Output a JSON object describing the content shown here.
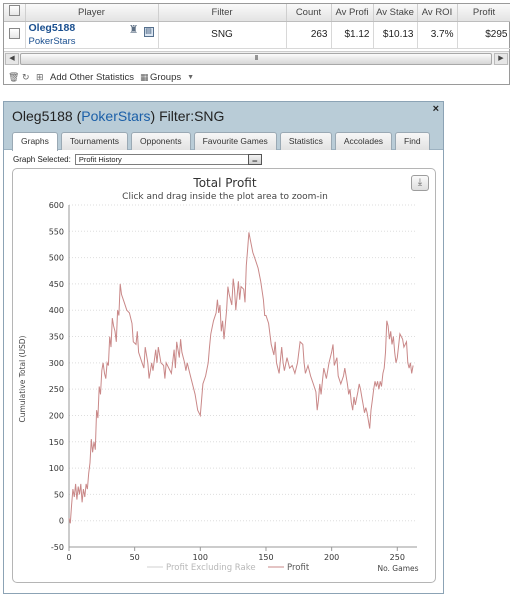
{
  "grid": {
    "headers": [
      "Player",
      "Filter",
      "Count",
      "Av Profi",
      "Av Stake",
      "Av ROI",
      "Profit"
    ],
    "row": {
      "player_name": "Oleg5188",
      "player_site": "PokerStars",
      "filter": "SNG",
      "count": "263",
      "av_profit": "$1.12",
      "av_stake": "$10.13",
      "av_roi": "3.7%",
      "profit": "$295"
    },
    "scroll_thumb_label": "III",
    "toolbar": {
      "add_other_label": "Add Other Statistics",
      "groups_label": "Groups"
    }
  },
  "dialog": {
    "title_player": "Oleg5188",
    "title_site": "PokerStars",
    "title_filter": "Filter:SNG",
    "close_label": "×",
    "tabs": [
      "Graphs",
      "Tournaments",
      "Opponents",
      "Favourite Games",
      "Statistics",
      "Accolades",
      "Find"
    ],
    "graph_selected_label": "Graph Selected:",
    "graph_selected_value": "Profit History"
  },
  "chart_data": {
    "type": "line",
    "title": "Total Profit",
    "subtitle": "Click and drag inside the plot area to zoom-in",
    "xlabel": "No. Games",
    "ylabel": "Cumulative Total (USD)",
    "xlim": [
      0,
      265
    ],
    "ylim": [
      -50,
      600
    ],
    "x_ticks": [
      0,
      50,
      100,
      150,
      200,
      250
    ],
    "y_ticks": [
      -50,
      0,
      50,
      100,
      150,
      200,
      250,
      300,
      350,
      400,
      450,
      500,
      550,
      600
    ],
    "legend": [
      "Profit Excluding Rake",
      "Profit"
    ],
    "legend_position": "bottom",
    "grid": true,
    "series": [
      {
        "name": "Profit",
        "color": "#c98888",
        "points": [
          [
            0,
            5
          ],
          [
            1,
            -5
          ],
          [
            2,
            30
          ],
          [
            3,
            60
          ],
          [
            4,
            45
          ],
          [
            5,
            70
          ],
          [
            6,
            40
          ],
          [
            7,
            65
          ],
          [
            8,
            50
          ],
          [
            9,
            70
          ],
          [
            10,
            35
          ],
          [
            11,
            60
          ],
          [
            12,
            45
          ],
          [
            13,
            70
          ],
          [
            14,
            60
          ],
          [
            15,
            90
          ],
          [
            16,
            110
          ],
          [
            17,
            155
          ],
          [
            18,
            130
          ],
          [
            19,
            150
          ],
          [
            20,
            135
          ],
          [
            21,
            210
          ],
          [
            22,
            195
          ],
          [
            23,
            255
          ],
          [
            24,
            240
          ],
          [
            25,
            285
          ],
          [
            26,
            300
          ],
          [
            27,
            280
          ],
          [
            28,
            270
          ],
          [
            29,
            300
          ],
          [
            30,
            295
          ],
          [
            31,
            350
          ],
          [
            32,
            330
          ],
          [
            33,
            385
          ],
          [
            34,
            370
          ],
          [
            35,
            360
          ],
          [
            36,
            340
          ],
          [
            37,
            400
          ],
          [
            38,
            390
          ],
          [
            39,
            450
          ],
          [
            40,
            430
          ],
          [
            42,
            415
          ],
          [
            44,
            400
          ],
          [
            46,
            395
          ],
          [
            48,
            375
          ],
          [
            49,
            340
          ],
          [
            51,
            335
          ],
          [
            52,
            360
          ],
          [
            53,
            320
          ],
          [
            55,
            305
          ],
          [
            57,
            290
          ],
          [
            58,
            330
          ],
          [
            60,
            300
          ],
          [
            61,
            270
          ],
          [
            63,
            300
          ],
          [
            64,
            285
          ],
          [
            66,
            325
          ],
          [
            67,
            300
          ],
          [
            68,
            330
          ],
          [
            70,
            300
          ],
          [
            72,
            295
          ],
          [
            73,
            270
          ],
          [
            74,
            300
          ],
          [
            76,
            290
          ],
          [
            78,
            280
          ],
          [
            80,
            325
          ],
          [
            81,
            290
          ],
          [
            82,
            340
          ],
          [
            84,
            310
          ],
          [
            85,
            345
          ],
          [
            86,
            320
          ],
          [
            88,
            300
          ],
          [
            89,
            285
          ],
          [
            90,
            300
          ],
          [
            92,
            280
          ],
          [
            93,
            270
          ],
          [
            95,
            250
          ],
          [
            96,
            240
          ],
          [
            97,
            225
          ],
          [
            98,
            210
          ],
          [
            100,
            200
          ],
          [
            101,
            230
          ],
          [
            102,
            260
          ],
          [
            104,
            275
          ],
          [
            106,
            300
          ],
          [
            107,
            330
          ],
          [
            108,
            355
          ],
          [
            110,
            380
          ],
          [
            112,
            395
          ],
          [
            113,
            420
          ],
          [
            114,
            395
          ],
          [
            115,
            410
          ],
          [
            116,
            360
          ],
          [
            117,
            380
          ],
          [
            118,
            345
          ],
          [
            120,
            400
          ],
          [
            121,
            445
          ],
          [
            122,
            430
          ],
          [
            124,
            410
          ],
          [
            125,
            460
          ],
          [
            126,
            440
          ],
          [
            127,
            400
          ],
          [
            129,
            455
          ],
          [
            130,
            420
          ],
          [
            131,
            445
          ],
          [
            133,
            440
          ],
          [
            134,
            415
          ],
          [
            135,
            485
          ],
          [
            136,
            515
          ],
          [
            137,
            548
          ],
          [
            138,
            535
          ],
          [
            140,
            510
          ],
          [
            142,
            495
          ],
          [
            144,
            480
          ],
          [
            146,
            455
          ],
          [
            148,
            420
          ],
          [
            149,
            390
          ],
          [
            150,
            390
          ],
          [
            152,
            375
          ],
          [
            154,
            335
          ],
          [
            156,
            315
          ],
          [
            157,
            340
          ],
          [
            158,
            300
          ],
          [
            160,
            280
          ],
          [
            162,
            330
          ],
          [
            163,
            300
          ],
          [
            164,
            285
          ],
          [
            166,
            310
          ],
          [
            168,
            290
          ],
          [
            170,
            295
          ],
          [
            172,
            280
          ],
          [
            174,
            300
          ],
          [
            176,
            340
          ],
          [
            178,
            335
          ],
          [
            179,
            300
          ],
          [
            180,
            280
          ],
          [
            182,
            295
          ],
          [
            184,
            275
          ],
          [
            186,
            260
          ],
          [
            188,
            245
          ],
          [
            189,
            210
          ],
          [
            190,
            230
          ],
          [
            191,
            260
          ],
          [
            192,
            240
          ],
          [
            193,
            265
          ],
          [
            194,
            290
          ],
          [
            196,
            270
          ],
          [
            198,
            300
          ],
          [
            200,
            320
          ],
          [
            201,
            335
          ],
          [
            202,
            295
          ],
          [
            204,
            310
          ],
          [
            205,
            275
          ],
          [
            207,
            260
          ],
          [
            209,
            275
          ],
          [
            210,
            290
          ],
          [
            212,
            260
          ],
          [
            213,
            240
          ],
          [
            214,
            250
          ],
          [
            215,
            225
          ],
          [
            216,
            210
          ],
          [
            217,
            235
          ],
          [
            218,
            220
          ],
          [
            220,
            245
          ],
          [
            221,
            260
          ],
          [
            222,
            250
          ],
          [
            223,
            235
          ],
          [
            224,
            220
          ],
          [
            225,
            205
          ],
          [
            226,
            215
          ],
          [
            227,
            205
          ],
          [
            228,
            190
          ],
          [
            229,
            175
          ],
          [
            230,
            210
          ],
          [
            231,
            230
          ],
          [
            232,
            250
          ],
          [
            233,
            265
          ],
          [
            234,
            255
          ],
          [
            235,
            265
          ],
          [
            236,
            250
          ],
          [
            237,
            265
          ],
          [
            238,
            255
          ],
          [
            239,
            280
          ],
          [
            240,
            290
          ],
          [
            241,
            320
          ],
          [
            242,
            380
          ],
          [
            243,
            370
          ],
          [
            244,
            345
          ],
          [
            245,
            360
          ],
          [
            246,
            335
          ],
          [
            247,
            350
          ],
          [
            248,
            320
          ],
          [
            249,
            300
          ],
          [
            250,
            310
          ],
          [
            252,
            355
          ],
          [
            254,
            345
          ],
          [
            255,
            330
          ],
          [
            257,
            340
          ],
          [
            258,
            300
          ],
          [
            259,
            290
          ],
          [
            260,
            300
          ],
          [
            261,
            280
          ],
          [
            262,
            295
          ]
        ]
      },
      {
        "name": "Profit Excluding Rake",
        "color": "#d0d0d0",
        "points": []
      }
    ]
  }
}
